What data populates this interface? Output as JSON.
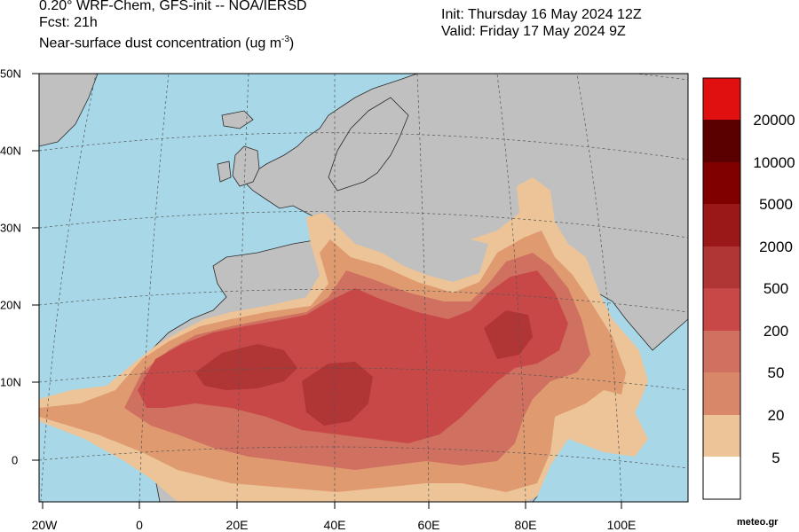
{
  "header": {
    "left": {
      "line1": "0.20° WRF-Chem, GFS-init -- NOA/IERSD",
      "line2": "Fcst: 21h",
      "line3_prefix": "Near-surface dust concentration (ug m",
      "line3_sup": "-3",
      "line3_suffix": ")"
    },
    "right": {
      "init": "Init: Thursday 16 May 2024   12Z",
      "valid": "Valid: Friday 17 May 2024   9Z"
    }
  },
  "map": {
    "x_tick_labels": [
      "20W",
      "0",
      "20E",
      "40E",
      "60E",
      "80E",
      "100E"
    ],
    "y_tick_labels": [
      "50N",
      "40N",
      "30N",
      "20N",
      "10N",
      "0"
    ],
    "colors": {
      "ocean": "#a8d8e8",
      "land": "#c0c0c0",
      "border": "#2a2a2a",
      "grid": "#555555"
    }
  },
  "colorbar": {
    "label_values": [
      "20000",
      "10000",
      "5000",
      "2000",
      "500",
      "200",
      "50",
      "20",
      "5"
    ],
    "colors_top_to_bottom": [
      "#e01010",
      "#5a0000",
      "#800000",
      "#9a1818",
      "#b03535",
      "#c84848",
      "#d07060",
      "#d88868",
      "#e09a70",
      "#ecc498",
      "#ffffff"
    ]
  },
  "credit": "meteo.gr"
}
